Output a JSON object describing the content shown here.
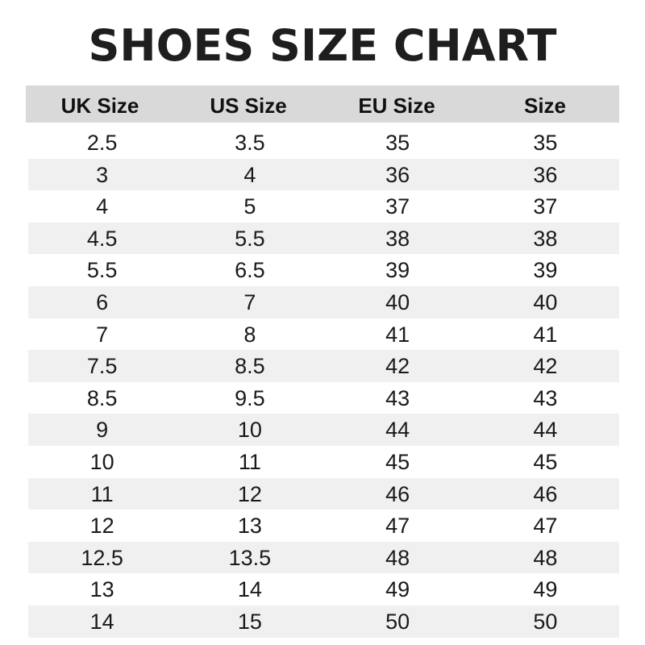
{
  "title": "SHOES SIZE CHART",
  "colors": {
    "header_bg": "#d9d9d9",
    "alt_row_bg": "#f0f0f0",
    "text": "#1a1a1a"
  },
  "columns": [
    "UK Size",
    "US Size",
    "EU Size",
    "Size"
  ],
  "rows": [
    [
      "2.5",
      "3.5",
      "35",
      "35"
    ],
    [
      "3",
      "4",
      "36",
      "36"
    ],
    [
      "4",
      "5",
      "37",
      "37"
    ],
    [
      "4.5",
      "5.5",
      "38",
      "38"
    ],
    [
      "5.5",
      "6.5",
      "39",
      "39"
    ],
    [
      "6",
      "7",
      "40",
      "40"
    ],
    [
      "7",
      "8",
      "41",
      "41"
    ],
    [
      "7.5",
      "8.5",
      "42",
      "42"
    ],
    [
      "8.5",
      "9.5",
      "43",
      "43"
    ],
    [
      "9",
      "10",
      "44",
      "44"
    ],
    [
      "10",
      "11",
      "45",
      "45"
    ],
    [
      "11",
      "12",
      "46",
      "46"
    ],
    [
      "12",
      "13",
      "47",
      "47"
    ],
    [
      "12.5",
      "13.5",
      "48",
      "48"
    ],
    [
      "13",
      "14",
      "49",
      "49"
    ],
    [
      "14",
      "15",
      "50",
      "50"
    ]
  ]
}
